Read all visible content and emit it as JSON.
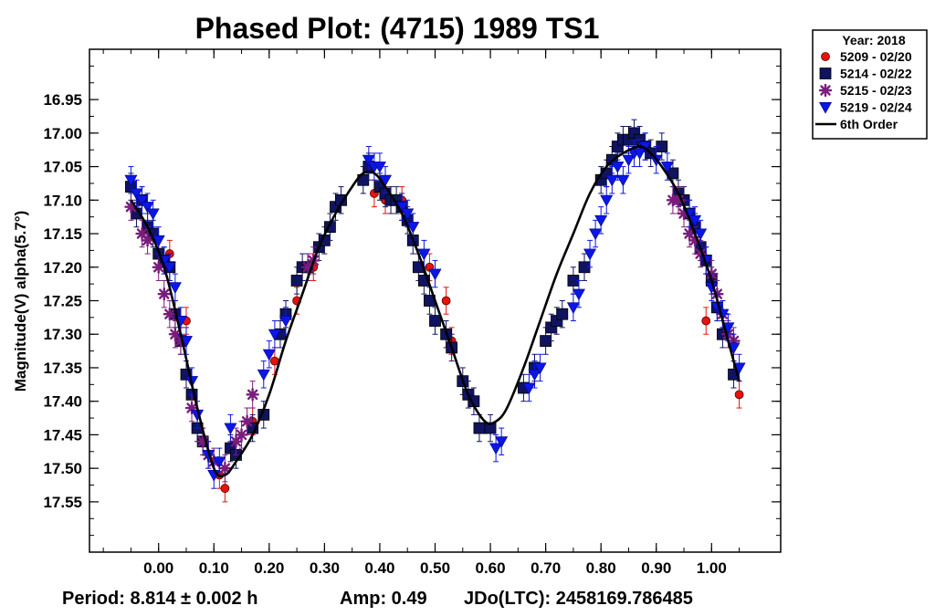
{
  "chart_data": {
    "type": "scatter",
    "title": "Phased Plot: (4715) 1989 TS1",
    "ylabel": "Magnitude(V) alpha(5.7°)",
    "xlabel": "",
    "xlim": [
      -0.125,
      1.125
    ],
    "ylim": [
      17.625,
      16.875
    ],
    "y_inverted": true,
    "x_ticks": [
      "0.00",
      "0.10",
      "0.20",
      "0.30",
      "0.40",
      "0.50",
      "0.60",
      "0.70",
      "0.80",
      "0.90",
      "1.00"
    ],
    "y_ticks": [
      "16.95",
      "17.00",
      "17.05",
      "17.10",
      "17.15",
      "17.20",
      "17.25",
      "17.30",
      "17.35",
      "17.40",
      "17.45",
      "17.50",
      "17.55"
    ],
    "grid": false,
    "legend_position": "top-right",
    "legend": {
      "title": "Year: 2018",
      "entries": [
        "5209 - 02/20",
        "5214 - 02/22",
        "5215 - 02/23",
        "5219 - 02/24",
        "6th Order"
      ]
    },
    "series": [
      {
        "name": "5209 - 02/20",
        "marker": "circle",
        "color": "#e8120c",
        "x": [
          0.02,
          0.05,
          0.11,
          0.12,
          0.17,
          0.21,
          0.25,
          0.28,
          0.39,
          0.41,
          0.44,
          0.49,
          0.52,
          0.53,
          0.94,
          0.99,
          1.05
        ],
        "y": [
          17.18,
          17.28,
          17.51,
          17.53,
          17.43,
          17.34,
          17.25,
          17.2,
          17.09,
          17.1,
          17.1,
          17.2,
          17.25,
          17.31,
          17.1,
          17.28,
          17.39
        ]
      },
      {
        "name": "5214 - 02/22",
        "marker": "square",
        "color": "#101460",
        "x": [
          -0.05,
          -0.04,
          -0.03,
          -0.02,
          -0.01,
          0.0,
          0.01,
          0.02,
          0.03,
          0.04,
          0.05,
          0.06,
          0.07,
          0.08,
          0.13,
          0.14,
          0.17,
          0.19,
          0.22,
          0.23,
          0.25,
          0.26,
          0.27,
          0.29,
          0.3,
          0.31,
          0.32,
          0.33,
          0.37,
          0.38,
          0.4,
          0.41,
          0.42,
          0.43,
          0.44,
          0.45,
          0.46,
          0.47,
          0.48,
          0.49,
          0.5,
          0.52,
          0.53,
          0.55,
          0.56,
          0.57,
          0.58,
          0.6,
          0.66,
          0.68,
          0.7,
          0.71,
          0.72,
          0.73,
          0.75,
          0.77,
          0.8,
          0.81,
          0.82,
          0.83,
          0.84,
          0.85,
          0.86,
          0.87,
          0.88,
          0.89,
          0.91,
          0.93,
          0.94,
          0.95,
          0.96,
          0.97,
          0.98,
          0.99,
          1.0,
          1.01,
          1.02,
          1.04
        ],
        "y": [
          17.08,
          17.12,
          17.1,
          17.14,
          17.15,
          17.18,
          17.19,
          17.2,
          17.27,
          17.31,
          17.36,
          17.39,
          17.44,
          17.46,
          17.47,
          17.48,
          17.44,
          17.42,
          17.3,
          17.27,
          17.22,
          17.2,
          17.2,
          17.17,
          17.16,
          17.14,
          17.11,
          17.1,
          17.07,
          17.05,
          17.08,
          17.09,
          17.1,
          17.1,
          17.11,
          17.13,
          17.16,
          17.2,
          17.22,
          17.25,
          17.28,
          17.3,
          17.32,
          17.37,
          17.39,
          17.4,
          17.44,
          17.44,
          17.38,
          17.35,
          17.31,
          17.29,
          17.28,
          17.27,
          17.22,
          17.2,
          17.07,
          17.06,
          17.04,
          17.02,
          17.01,
          17.01,
          17.0,
          17.01,
          17.02,
          17.03,
          17.02,
          17.06,
          17.09,
          17.1,
          17.12,
          17.14,
          17.17,
          17.19,
          17.22,
          17.26,
          17.3,
          17.36
        ],
        "trend": "decreasing"
      },
      {
        "name": "5215 - 02/23",
        "marker": "asterisk",
        "color": "#7a1c7c",
        "x": [
          -0.05,
          -0.03,
          -0.02,
          0.0,
          0.01,
          0.02,
          0.03,
          0.04,
          0.06,
          0.08,
          0.09,
          0.1,
          0.12,
          0.14,
          0.15,
          0.16,
          0.17,
          0.27,
          0.28,
          0.93,
          0.94,
          0.95,
          0.96,
          0.97,
          0.98,
          1.0,
          1.01,
          1.02,
          1.03,
          1.04
        ],
        "y": [
          17.11,
          17.15,
          17.16,
          17.2,
          17.24,
          17.27,
          17.3,
          17.31,
          17.41,
          17.46,
          17.48,
          17.49,
          17.5,
          17.46,
          17.45,
          17.43,
          17.39,
          17.2,
          17.19,
          17.1,
          17.1,
          17.12,
          17.15,
          17.16,
          17.18,
          17.21,
          17.24,
          17.27,
          17.3,
          17.31
        ]
      },
      {
        "name": "5219 - 02/24",
        "marker": "triangle-down",
        "color": "#0b17e6",
        "x": [
          -0.05,
          -0.04,
          -0.03,
          -0.02,
          -0.01,
          0.0,
          0.01,
          0.02,
          0.03,
          0.04,
          0.05,
          0.06,
          0.07,
          0.09,
          0.1,
          0.11,
          0.13,
          0.19,
          0.2,
          0.21,
          0.23,
          0.38,
          0.39,
          0.4,
          0.41,
          0.44,
          0.45,
          0.46,
          0.48,
          0.5,
          0.61,
          0.62,
          0.67,
          0.68,
          0.69,
          0.75,
          0.76,
          0.78,
          0.79,
          0.8,
          0.81,
          0.82,
          0.83,
          0.84,
          0.85,
          0.86,
          0.87,
          0.88,
          0.9,
          0.92,
          0.96,
          0.97,
          0.98,
          0.99,
          1.0,
          1.01,
          1.02,
          1.03,
          1.04,
          1.05
        ],
        "y": [
          17.07,
          17.09,
          17.1,
          17.11,
          17.12,
          17.16,
          17.19,
          17.2,
          17.23,
          17.28,
          17.31,
          17.37,
          17.42,
          17.48,
          17.51,
          17.49,
          17.44,
          17.36,
          17.33,
          17.3,
          17.28,
          17.04,
          17.05,
          17.05,
          17.07,
          17.11,
          17.12,
          17.14,
          17.18,
          17.21,
          17.47,
          17.46,
          17.38,
          17.36,
          17.35,
          17.26,
          17.24,
          17.18,
          17.15,
          17.13,
          17.1,
          17.07,
          17.05,
          17.07,
          17.04,
          17.03,
          17.03,
          17.02,
          17.04,
          17.05,
          17.12,
          17.13,
          17.15,
          17.19,
          17.23,
          17.26,
          17.27,
          17.29,
          17.32,
          17.35
        ]
      }
    ],
    "fit": {
      "name": "6th Order",
      "color": "#000000",
      "x": [
        -0.05,
        -0.02,
        0.01,
        0.04,
        0.07,
        0.1,
        0.12,
        0.14,
        0.17,
        0.2,
        0.23,
        0.26,
        0.29,
        0.32,
        0.35,
        0.37,
        0.39,
        0.41,
        0.44,
        0.47,
        0.5,
        0.53,
        0.56,
        0.59,
        0.61,
        0.63,
        0.66,
        0.69,
        0.72,
        0.75,
        0.78,
        0.81,
        0.84,
        0.87,
        0.89,
        0.91,
        0.94,
        0.97,
        1.0,
        1.03,
        1.05
      ],
      "y": [
        17.1,
        17.14,
        17.2,
        17.3,
        17.41,
        17.5,
        17.51,
        17.49,
        17.45,
        17.39,
        17.31,
        17.24,
        17.17,
        17.12,
        17.08,
        17.06,
        17.06,
        17.08,
        17.12,
        17.18,
        17.25,
        17.32,
        17.39,
        17.43,
        17.43,
        17.41,
        17.35,
        17.28,
        17.21,
        17.15,
        17.09,
        17.05,
        17.03,
        17.02,
        17.03,
        17.05,
        17.09,
        17.15,
        17.22,
        17.31,
        17.37
      ]
    }
  },
  "footer": {
    "period": "Period: 8.814 ± 0.002 h",
    "amp": "Amp: 0.49",
    "jdo": "JDo(LTC): 2458169.786485"
  }
}
